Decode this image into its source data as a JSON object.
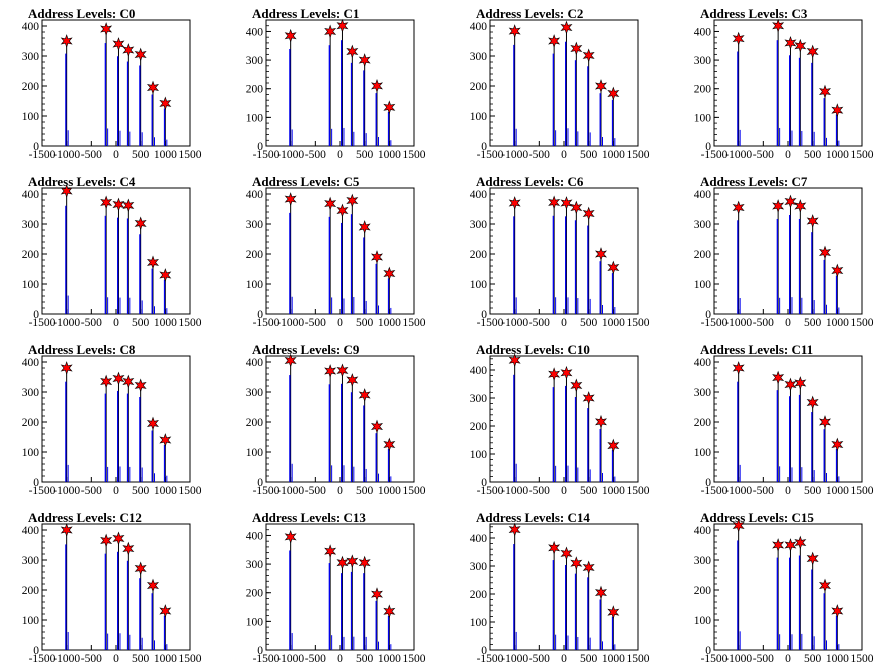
{
  "colors": {
    "line": "#0000ee",
    "spike": "#000000",
    "marker_fill": "#ff0000",
    "marker_stroke": "#000000",
    "frame": "#000000"
  },
  "chart_data": [
    {
      "type": "bar",
      "title": "Address Levels: C0",
      "xlim": [
        -1500,
        1500
      ],
      "ylim": [
        0,
        420
      ],
      "xticks": [
        -1500,
        -1000,
        -500,
        0,
        500,
        1000,
        1500
      ],
      "yticks": [
        0,
        100,
        200,
        300,
        400
      ],
      "x": [
        -1000,
        -200,
        50,
        250,
        500,
        750,
        1000
      ],
      "values": [
        350,
        390,
        340,
        320,
        305,
        195,
        142
      ]
    },
    {
      "type": "bar",
      "title": "Address Levels: C1",
      "xlim": [
        -1500,
        1500
      ],
      "ylim": [
        0,
        440
      ],
      "xticks": [
        -1500,
        -1000,
        -500,
        0,
        500,
        1000,
        1500
      ],
      "yticks": [
        0,
        100,
        200,
        300,
        400
      ],
      "x": [
        -1000,
        -200,
        50,
        250,
        500,
        750,
        1000
      ],
      "values": [
        385,
        400,
        420,
        330,
        300,
        210,
        135
      ]
    },
    {
      "type": "bar",
      "title": "Address Levels: C2",
      "xlim": [
        -1500,
        1500
      ],
      "ylim": [
        0,
        420
      ],
      "xticks": [
        -1500,
        -1000,
        -500,
        0,
        500,
        1000,
        1500
      ],
      "yticks": [
        0,
        100,
        200,
        300,
        400
      ],
      "x": [
        -1000,
        -200,
        50,
        250,
        500,
        750,
        1000
      ],
      "values": [
        383,
        350,
        395,
        325,
        302,
        200,
        175
      ]
    },
    {
      "type": "bar",
      "title": "Address Levels: C3",
      "xlim": [
        -1500,
        1500
      ],
      "ylim": [
        0,
        440
      ],
      "xticks": [
        -1500,
        -1000,
        -500,
        0,
        500,
        1000,
        1500
      ],
      "yticks": [
        0,
        100,
        200,
        300,
        400
      ],
      "x": [
        -1000,
        -200,
        50,
        250,
        500,
        750,
        1000
      ],
      "values": [
        375,
        420,
        360,
        350,
        330,
        190,
        125
      ]
    },
    {
      "type": "bar",
      "title": "Address Levels: C4",
      "xlim": [
        -1500,
        1500
      ],
      "ylim": [
        0,
        420
      ],
      "xticks": [
        -1500,
        -1000,
        -500,
        0,
        500,
        1000,
        1500
      ],
      "yticks": [
        0,
        100,
        200,
        300,
        400
      ],
      "x": [
        -1000,
        -200,
        50,
        250,
        500,
        750,
        1000
      ],
      "values": [
        410,
        372,
        365,
        362,
        302,
        172,
        130
      ]
    },
    {
      "type": "bar",
      "title": "Address Levels: C5",
      "xlim": [
        -1500,
        1500
      ],
      "ylim": [
        0,
        420
      ],
      "xticks": [
        -1500,
        -1000,
        -500,
        0,
        500,
        1000,
        1500
      ],
      "yticks": [
        0,
        100,
        200,
        300,
        400
      ],
      "x": [
        -1000,
        -200,
        50,
        250,
        500,
        750,
        1000
      ],
      "values": [
        383,
        368,
        345,
        378,
        290,
        190,
        135
      ]
    },
    {
      "type": "bar",
      "title": "Address Levels: C6",
      "xlim": [
        -1500,
        1500
      ],
      "ylim": [
        0,
        420
      ],
      "xticks": [
        -1500,
        -1000,
        -500,
        0,
        500,
        1000,
        1500
      ],
      "yticks": [
        0,
        100,
        200,
        300,
        400
      ],
      "x": [
        -1000,
        -200,
        50,
        250,
        500,
        750,
        1000
      ],
      "values": [
        370,
        372,
        370,
        355,
        335,
        200,
        155
      ]
    },
    {
      "type": "bar",
      "title": "Address Levels: C7",
      "xlim": [
        -1500,
        1500
      ],
      "ylim": [
        0,
        420
      ],
      "xticks": [
        -1500,
        -1000,
        -500,
        0,
        500,
        1000,
        1500
      ],
      "yticks": [
        0,
        100,
        200,
        300,
        400
      ],
      "x": [
        -1000,
        -200,
        50,
        250,
        500,
        750,
        1000
      ],
      "values": [
        355,
        360,
        375,
        360,
        310,
        205,
        145
      ]
    },
    {
      "type": "bar",
      "title": "Address Levels: C8",
      "xlim": [
        -1500,
        1500
      ],
      "ylim": [
        0,
        420
      ],
      "xticks": [
        -1500,
        -1000,
        -500,
        0,
        500,
        1000,
        1500
      ],
      "yticks": [
        0,
        100,
        200,
        300,
        400
      ],
      "x": [
        -1000,
        -200,
        50,
        250,
        500,
        750,
        1000
      ],
      "values": [
        380,
        335,
        345,
        335,
        322,
        195,
        140
      ]
    },
    {
      "type": "bar",
      "title": "Address Levels: C9",
      "xlim": [
        -1500,
        1500
      ],
      "ylim": [
        0,
        420
      ],
      "xticks": [
        -1500,
        -1000,
        -500,
        0,
        500,
        1000,
        1500
      ],
      "yticks": [
        0,
        100,
        200,
        300,
        400
      ],
      "x": [
        -1000,
        -200,
        50,
        250,
        500,
        750,
        1000
      ],
      "values": [
        405,
        370,
        372,
        340,
        290,
        185,
        125
      ]
    },
    {
      "type": "bar",
      "title": "Address Levels: C10",
      "xlim": [
        -1500,
        1500
      ],
      "ylim": [
        0,
        450
      ],
      "xticks": [
        -1500,
        -1000,
        -500,
        0,
        500,
        1000,
        1500
      ],
      "yticks": [
        0,
        100,
        200,
        300,
        400
      ],
      "x": [
        -1000,
        -200,
        50,
        250,
        500,
        750,
        1000
      ],
      "values": [
        435,
        385,
        390,
        345,
        300,
        215,
        130
      ]
    },
    {
      "type": "bar",
      "title": "Address Levels: C11",
      "xlim": [
        -1500,
        1500
      ],
      "ylim": [
        0,
        420
      ],
      "xticks": [
        -1500,
        -1000,
        -500,
        0,
        500,
        1000,
        1500
      ],
      "yticks": [
        0,
        100,
        200,
        300,
        400
      ],
      "x": [
        -1000,
        -200,
        50,
        250,
        500,
        750,
        1000
      ],
      "values": [
        380,
        348,
        325,
        330,
        265,
        200,
        125
      ]
    },
    {
      "type": "bar",
      "title": "Address Levels: C12",
      "xlim": [
        -1500,
        1500
      ],
      "ylim": [
        0,
        420
      ],
      "xticks": [
        -1500,
        -1000,
        -500,
        0,
        500,
        1000,
        1500
      ],
      "yticks": [
        0,
        100,
        200,
        300,
        400
      ],
      "x": [
        -1000,
        -200,
        50,
        250,
        500,
        750,
        1000
      ],
      "values": [
        400,
        365,
        372,
        338,
        272,
        215,
        130
      ]
    },
    {
      "type": "bar",
      "title": "Address Levels: C13",
      "xlim": [
        -1500,
        1500
      ],
      "ylim": [
        0,
        440
      ],
      "xticks": [
        -1500,
        -1000,
        -500,
        0,
        500,
        1000,
        1500
      ],
      "yticks": [
        0,
        100,
        200,
        300,
        400
      ],
      "x": [
        -1000,
        -200,
        50,
        250,
        500,
        750,
        1000
      ],
      "values": [
        395,
        345,
        305,
        310,
        305,
        195,
        135
      ]
    },
    {
      "type": "bar",
      "title": "Address Levels: C14",
      "xlim": [
        -1500,
        1500
      ],
      "ylim": [
        0,
        450
      ],
      "xticks": [
        -1500,
        -1000,
        -500,
        0,
        500,
        1000,
        1500
      ],
      "yticks": [
        0,
        100,
        200,
        300,
        400
      ],
      "x": [
        -1000,
        -200,
        50,
        250,
        500,
        750,
        1000
      ],
      "values": [
        430,
        365,
        345,
        310,
        295,
        205,
        135
      ]
    },
    {
      "type": "bar",
      "title": "Address Levels: C15",
      "xlim": [
        -1500,
        1500
      ],
      "ylim": [
        0,
        420
      ],
      "xticks": [
        -1500,
        -1000,
        -500,
        0,
        500,
        1000,
        1500
      ],
      "yticks": [
        0,
        100,
        200,
        300,
        400
      ],
      "x": [
        -1000,
        -200,
        50,
        250,
        500,
        750,
        1000
      ],
      "values": [
        415,
        350,
        350,
        358,
        305,
        215,
        130
      ]
    }
  ]
}
